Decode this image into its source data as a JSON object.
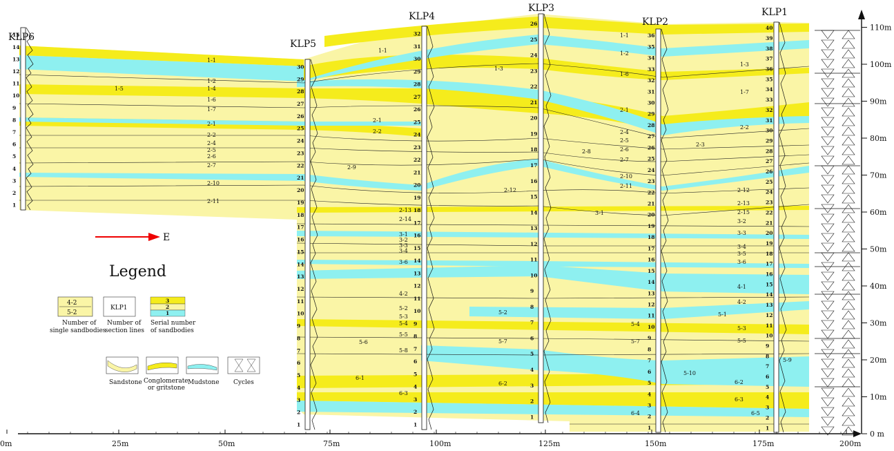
{
  "diagram": {
    "sections": [
      {
        "id": "KLP6",
        "label": "KLP6"
      },
      {
        "id": "KLP5",
        "label": "KLP5"
      },
      {
        "id": "KLP4",
        "label": "KLP4"
      },
      {
        "id": "KLP3",
        "label": "KLP3"
      },
      {
        "id": "KLP2",
        "label": "KLP2"
      },
      {
        "id": "KLP1",
        "label": "KLP1"
      }
    ],
    "x_axis": {
      "ticks": [
        "0m",
        "25m",
        "50m",
        "75m",
        "100m",
        "125m",
        "150m",
        "175m",
        "200m"
      ]
    },
    "y_axis": {
      "ticks": [
        "0 m",
        "10m",
        "20m",
        "30m",
        "40m",
        "50m",
        "60m",
        "70m",
        "80m",
        "90m",
        "100m",
        "110m"
      ]
    },
    "direction_label": "E",
    "legend": {
      "title": "Legend",
      "single_sandbody_sample_top": "4-2",
      "single_sandbody_sample_bottom": "5-2",
      "single_sandbody_caption_1": "Number of",
      "single_sandbody_caption_2": "single sandbodies",
      "section_line_sample": "KLP1",
      "section_line_caption_1": "Number of",
      "section_line_caption_2": "section lines",
      "serial_sample": [
        "3",
        "2",
        "1"
      ],
      "serial_caption_1": "Serial number",
      "serial_caption_2": "of sandbodies",
      "sandstone": "Sandstone",
      "conglomerate_1": "Conglomerate",
      "conglomerate_2": "or gritstone",
      "mudstone": "Mudstone",
      "cycles": "Cycles",
      "colors": {
        "sandstone": "#faf5a6",
        "conglomerate": "#f5ec1c",
        "mudstone": "#8ef0f0"
      }
    },
    "sandbody_labels": [
      {
        "text": "1-1"
      },
      {
        "text": "1-2"
      },
      {
        "text": "1-3"
      },
      {
        "text": "1-4"
      },
      {
        "text": "1-5"
      },
      {
        "text": "1-6"
      },
      {
        "text": "1-7"
      },
      {
        "text": "2-1"
      },
      {
        "text": "2-2"
      },
      {
        "text": "2-3"
      },
      {
        "text": "2-4"
      },
      {
        "text": "2-5"
      },
      {
        "text": "2-6"
      },
      {
        "text": "2-7"
      },
      {
        "text": "2-8"
      },
      {
        "text": "2-9"
      },
      {
        "text": "2-10"
      },
      {
        "text": "2-11"
      },
      {
        "text": "2-12"
      },
      {
        "text": "2-13"
      },
      {
        "text": "2-14"
      },
      {
        "text": "2-15"
      },
      {
        "text": "3-1"
      },
      {
        "text": "3-2"
      },
      {
        "text": "3-3"
      },
      {
        "text": "3-4"
      },
      {
        "text": "3-5"
      },
      {
        "text": "3-6"
      },
      {
        "text": "4-1"
      },
      {
        "text": "4-2"
      },
      {
        "text": "5-1"
      },
      {
        "text": "5-2"
      },
      {
        "text": "5-3"
      },
      {
        "text": "5-4"
      },
      {
        "text": "5-5"
      },
      {
        "text": "5-6"
      },
      {
        "text": "5-7"
      },
      {
        "text": "5-8"
      },
      {
        "text": "5-9"
      },
      {
        "text": "5-10"
      },
      {
        "text": "6-1"
      },
      {
        "text": "6-2"
      },
      {
        "text": "6-3"
      },
      {
        "text": "6-4"
      },
      {
        "text": "6-5"
      }
    ],
    "column_numbers": {
      "KLP6": [
        "15",
        "14",
        "13",
        "12",
        "11",
        "10",
        "9",
        "8",
        "7",
        "6",
        "5",
        "4",
        "3",
        "2",
        "1"
      ],
      "KLP5": [
        "30",
        "29",
        "28",
        "27",
        "26",
        "25",
        "24",
        "23",
        "22",
        "21",
        "20",
        "19",
        "18",
        "17",
        "16",
        "15",
        "14",
        "13",
        "12",
        "11",
        "10",
        "9",
        "8",
        "7",
        "6",
        "5",
        "4",
        "3",
        "2",
        "1"
      ],
      "KLP4": [
        "32",
        "31",
        "30",
        "29",
        "28",
        "27",
        "26",
        "25",
        "24",
        "23",
        "22",
        "21",
        "20",
        "19",
        "18",
        "17",
        "16",
        "15",
        "14",
        "13",
        "12",
        "11",
        "10",
        "9",
        "8",
        "7",
        "6",
        "5",
        "4",
        "3",
        "2",
        "1"
      ],
      "KLP3": [
        "26",
        "25",
        "24",
        "23",
        "22",
        "21",
        "20",
        "19",
        "18",
        "17",
        "16",
        "15",
        "14",
        "13",
        "12",
        "11",
        "10",
        "9",
        "8",
        "7",
        "6",
        "5",
        "4",
        "3",
        "2",
        "1"
      ],
      "KLP2": [
        "36",
        "35",
        "34",
        "33",
        "32",
        "31",
        "30",
        "29",
        "28",
        "27",
        "26",
        "25",
        "24",
        "23",
        "22",
        "21",
        "20",
        "19",
        "18",
        "17",
        "16",
        "15",
        "14",
        "13",
        "12",
        "11",
        "10",
        "9",
        "8",
        "7",
        "6",
        "5",
        "4",
        "3",
        "2",
        "1"
      ],
      "KLP1": [
        "40",
        "39",
        "38",
        "37",
        "36",
        "35",
        "34",
        "33",
        "32",
        "31",
        "30",
        "29",
        "28",
        "27",
        "26",
        "25",
        "24",
        "23",
        "22",
        "21",
        "20",
        "19",
        "18",
        "17",
        "16",
        "15",
        "14",
        "13",
        "12",
        "11",
        "10",
        "9",
        "8",
        "7",
        "6",
        "5",
        "4",
        "3",
        "2",
        "1"
      ]
    }
  }
}
